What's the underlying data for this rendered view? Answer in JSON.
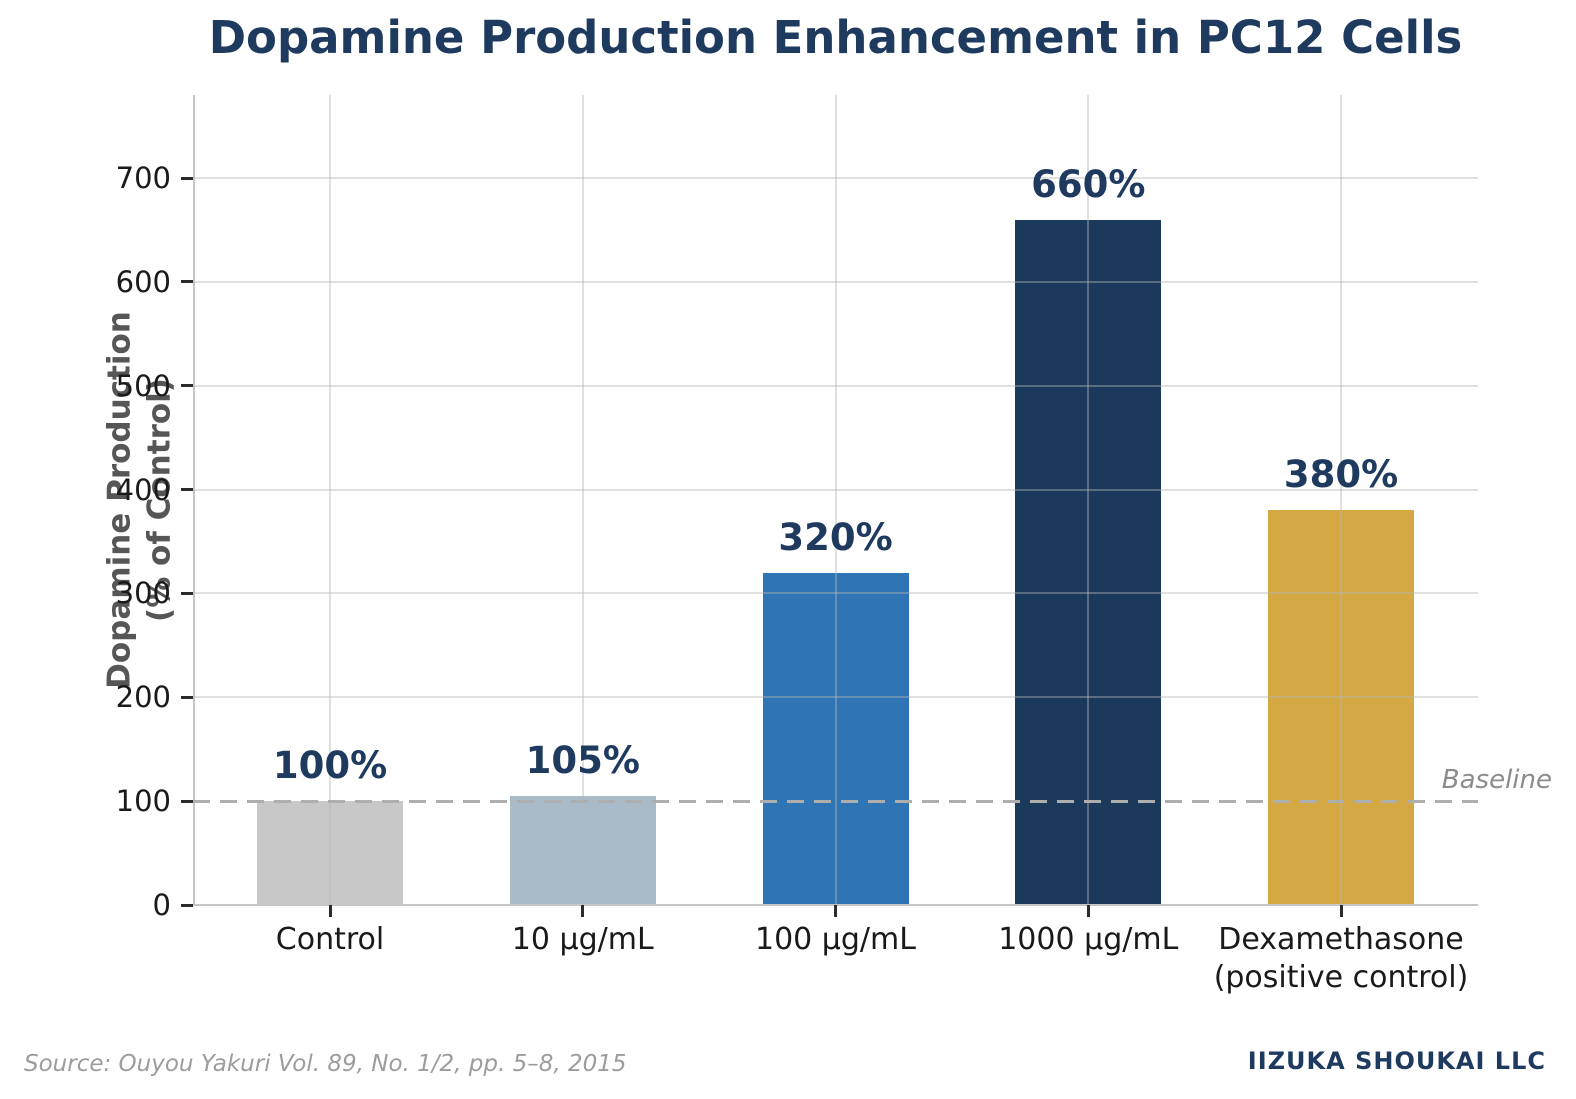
{
  "title": "Dopamine Production Enhancement in PC12 Cells",
  "chart_data": {
    "type": "bar",
    "title": "Dopamine Production Enhancement in PC12 Cells",
    "xlabel": "",
    "ylabel": "Dopamine Production\n(% of Control)",
    "ylabel_lines": [
      "Dopamine Production",
      "(% of Control)"
    ],
    "ylim": [
      0,
      780
    ],
    "ytick_values": [
      0,
      100,
      200,
      300,
      400,
      500,
      600,
      700
    ],
    "yticks": [
      "0",
      "100",
      "200",
      "300",
      "400",
      "500",
      "600",
      "700"
    ],
    "grid": true,
    "legend_position": "none",
    "categories": [
      "Control",
      "10 μg/mL",
      "100 μg/mL",
      "1000 μg/mL",
      "Dexamethasone\n(positive control)"
    ],
    "values": [
      100,
      105,
      320,
      660,
      380
    ],
    "bar_labels": [
      "100%",
      "105%",
      "320%",
      "660%",
      "380%"
    ],
    "bar_colors": [
      "#c8c8c8",
      "#a9bac9",
      "#2f74b4",
      "#1a395b",
      "#d4a944"
    ],
    "baseline": {
      "value": 100,
      "label": "Baseline"
    }
  },
  "footer": {
    "source": "Source: Ouyou Yakuri Vol. 89, No. 1/2, pp. 5–8, 2015",
    "company": "IIZUKA SHOUKAI LLC"
  },
  "colors": {
    "title": "#1f3a5f",
    "value_label": "#1f3a5f",
    "axis_label": "#565656",
    "tick_label": "#1a1a1a",
    "grid": "#b4b4b4",
    "spine": "#c6c6c6",
    "tick": "#2b2b2b",
    "baseline": "#aeaeae",
    "baseline_label": "#8c8c8c",
    "source": "#9c9c9c",
    "company": "#1f3a5f",
    "background": "#ffffff"
  }
}
